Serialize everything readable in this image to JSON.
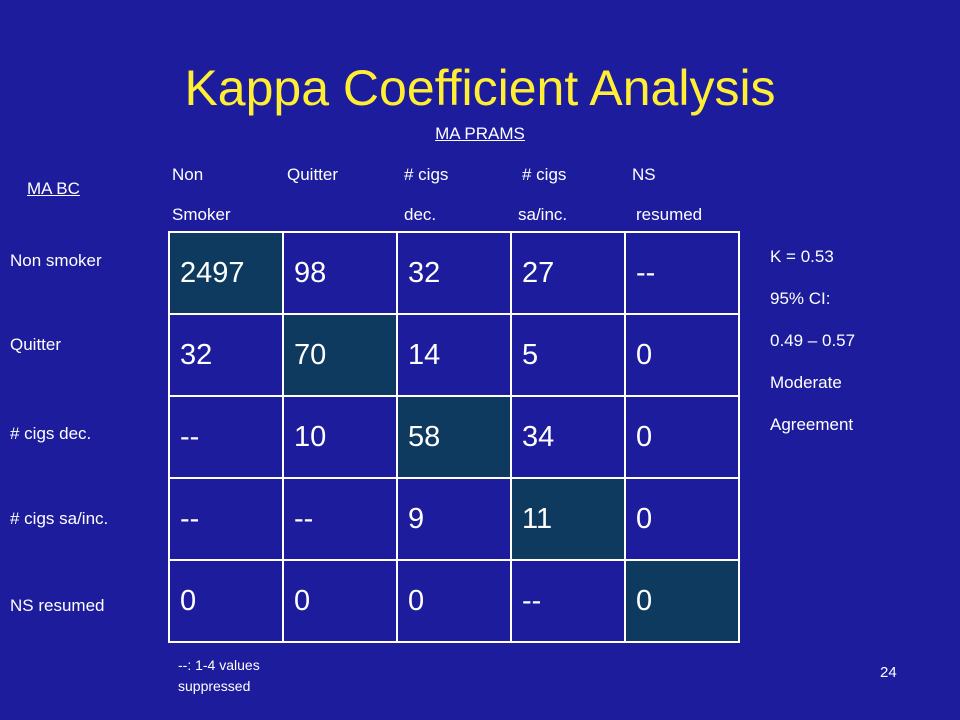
{
  "slide": {
    "title": "Kappa Coefficient Analysis",
    "column_source": "MA PRAMS",
    "row_source": "MA BC",
    "page_number": "24"
  },
  "columns": [
    {
      "line1": "Non",
      "line2": "Smoker"
    },
    {
      "line1": "Quitter",
      "line2": ""
    },
    {
      "line1": "# cigs",
      "line2": "dec."
    },
    {
      "line1": "# cigs",
      "line2": "sa/inc."
    },
    {
      "line1": "NS",
      "line2": "resumed"
    }
  ],
  "rows": [
    {
      "label": "Non smoker",
      "cells": [
        "2497",
        "98",
        "32",
        "27",
        "--"
      ]
    },
    {
      "label": "Quitter",
      "cells": [
        "32",
        "70",
        "14",
        "5",
        "0"
      ]
    },
    {
      "label": "# cigs dec.",
      "cells": [
        "--",
        "10",
        "58",
        "34",
        "0"
      ]
    },
    {
      "label": "# cigs sa/inc.",
      "cells": [
        "--",
        "--",
        "9",
        "11",
        "0"
      ]
    },
    {
      "label": "NS resumed",
      "cells": [
        "0",
        "0",
        "0",
        "--",
        "0"
      ]
    }
  ],
  "stats": {
    "kappa": "K = 0.53",
    "ci_label": "95% CI:",
    "ci_range": "0.49 – 0.57",
    "interp_line1": "Moderate",
    "interp_line2": "Agreement"
  },
  "footnote": {
    "line1": "--: 1-4 values",
    "line2": "suppressed"
  },
  "colors": {
    "background": "#1c1c9c",
    "title": "#ffee33",
    "diagonal_cell": "#0d3a5e"
  }
}
